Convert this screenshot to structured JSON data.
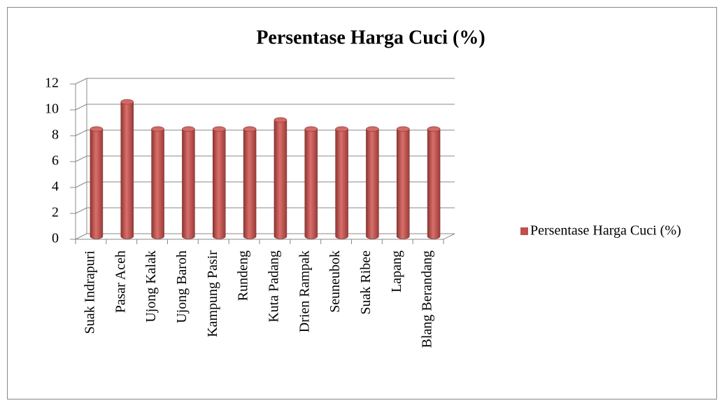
{
  "chart_data": {
    "type": "bar",
    "title": "Persentase Harga Cuci (%)",
    "categories": [
      "Suak Indrapuri",
      "Pasar Aceh",
      "Ujong Kalak",
      "Ujong Baroh",
      "Kampung Pasir",
      "Rundeng",
      "Kuta Padang",
      "Drien Rampak",
      "Seuneubok",
      "Suak Ribee",
      "Lapang",
      "Blang Berandang"
    ],
    "series": [
      {
        "name": "Persentase Harga Cuci (%)",
        "color": "#c0504d",
        "values": [
          8.3,
          10.4,
          8.3,
          8.3,
          8.3,
          8.3,
          9.0,
          8.3,
          8.3,
          8.3,
          8.3,
          8.3
        ]
      }
    ],
    "ylim": [
      0,
      12
    ],
    "yticks": [
      0,
      2,
      4,
      6,
      8,
      10,
      12
    ],
    "grid": true,
    "legend": "right"
  }
}
